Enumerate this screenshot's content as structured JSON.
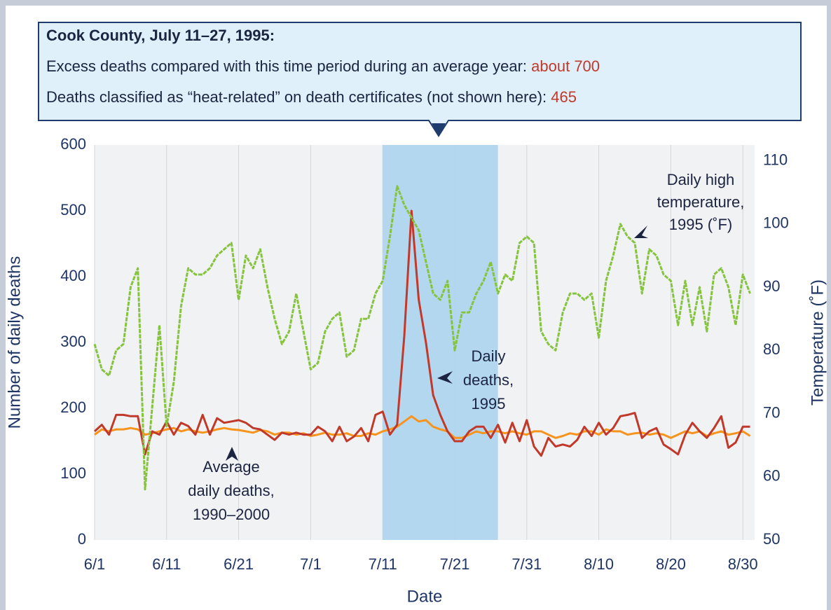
{
  "chart_data": {
    "type": "line",
    "callout": {
      "title": "Cook County, July 11–27, 1995:",
      "lines": [
        {
          "text": "Excess deaths compared with this time period during an average year:",
          "highlight": "about 700"
        },
        {
          "text": "Deaths classified as “heat-related” on death certificates (not shown here):",
          "highlight": "465"
        }
      ]
    },
    "xlabel": "Date",
    "ylabel": "Number of daily deaths",
    "y2label": "Temperature (˚F)",
    "x": [
      "6/1",
      "6/2",
      "6/3",
      "6/4",
      "6/5",
      "6/6",
      "6/7",
      "6/8",
      "6/9",
      "6/10",
      "6/11",
      "6/12",
      "6/13",
      "6/14",
      "6/15",
      "6/16",
      "6/17",
      "6/18",
      "6/19",
      "6/20",
      "6/21",
      "6/22",
      "6/23",
      "6/24",
      "6/25",
      "6/26",
      "6/27",
      "6/28",
      "6/29",
      "6/30",
      "7/1",
      "7/2",
      "7/3",
      "7/4",
      "7/5",
      "7/6",
      "7/7",
      "7/8",
      "7/9",
      "7/10",
      "7/11",
      "7/12",
      "7/13",
      "7/14",
      "7/15",
      "7/16",
      "7/17",
      "7/18",
      "7/19",
      "7/20",
      "7/21",
      "7/22",
      "7/23",
      "7/24",
      "7/25",
      "7/26",
      "7/27",
      "7/28",
      "7/29",
      "7/30",
      "7/31",
      "8/1",
      "8/2",
      "8/3",
      "8/4",
      "8/5",
      "8/6",
      "8/7",
      "8/8",
      "8/9",
      "8/10",
      "8/11",
      "8/12",
      "8/13",
      "8/14",
      "8/15",
      "8/16",
      "8/17",
      "8/18",
      "8/19",
      "8/20",
      "8/21",
      "8/22",
      "8/23",
      "8/24",
      "8/25",
      "8/26",
      "8/27",
      "8/28",
      "8/29",
      "8/30",
      "8/31"
    ],
    "xticks": [
      "6/1",
      "6/11",
      "6/21",
      "7/1",
      "7/11",
      "7/21",
      "7/31",
      "8/10",
      "8/20",
      "8/30"
    ],
    "highlight_range": [
      "7/11",
      "7/27"
    ],
    "ylim": [
      0,
      600
    ],
    "yticks": [
      0,
      100,
      200,
      300,
      400,
      500,
      600
    ],
    "y2lim": [
      50,
      112.5
    ],
    "y2ticks": [
      50,
      60,
      70,
      80,
      90,
      100,
      110
    ],
    "grid": true,
    "series": [
      {
        "name": "Daily high temperature, 1995 (˚F)",
        "axis": "y2",
        "color": "#86c440",
        "values": [
          81,
          77,
          76,
          80,
          81,
          90,
          93,
          58,
          71,
          84,
          68,
          75,
          87,
          93,
          92,
          92,
          93,
          95,
          96,
          97,
          88,
          95,
          93,
          96,
          90,
          85,
          81,
          83,
          89,
          83,
          77,
          78,
          83,
          85,
          86,
          79,
          80,
          85,
          85,
          89,
          91,
          98,
          106,
          103,
          101,
          99,
          94,
          89,
          88,
          91,
          80,
          86,
          86,
          89,
          91,
          94,
          89,
          92,
          91,
          97,
          98,
          97,
          83,
          81,
          80,
          86,
          89,
          89,
          88,
          89,
          82,
          91,
          95,
          100,
          98,
          97,
          89,
          96,
          95,
          92,
          91,
          84,
          91,
          84,
          90,
          83,
          92,
          93,
          90,
          84,
          92,
          89
        ]
      },
      {
        "name": "Daily deaths, 1995",
        "color": "#c0392b",
        "values": [
          165,
          175,
          160,
          190,
          190,
          188,
          188,
          130,
          165,
          160,
          180,
          160,
          178,
          173,
          160,
          190,
          160,
          185,
          178,
          180,
          182,
          178,
          170,
          168,
          160,
          152,
          163,
          160,
          163,
          160,
          160,
          172,
          165,
          150,
          172,
          150,
          157,
          170,
          150,
          190,
          195,
          160,
          175,
          310,
          500,
          365,
          300,
          220,
          190,
          165,
          150,
          150,
          165,
          172,
          172,
          155,
          175,
          148,
          178,
          150,
          182,
          142,
          128,
          155,
          142,
          145,
          142,
          152,
          172,
          158,
          178,
          160,
          170,
          188,
          190,
          193,
          155,
          165,
          170,
          145,
          138,
          130,
          160,
          178,
          165,
          155,
          170,
          188,
          140,
          148,
          172,
          172
        ]
      },
      {
        "name": "Average daily deaths, 1990–2000",
        "color": "#f7941d",
        "values": [
          160,
          168,
          165,
          168,
          168,
          170,
          168,
          160,
          162,
          165,
          168,
          170,
          165,
          168,
          165,
          163,
          165,
          168,
          170,
          168,
          167,
          165,
          163,
          167,
          165,
          160,
          163,
          163,
          160,
          162,
          158,
          160,
          163,
          160,
          160,
          162,
          158,
          158,
          162,
          160,
          165,
          168,
          172,
          180,
          188,
          180,
          182,
          172,
          168,
          165,
          155,
          155,
          160,
          165,
          162,
          165,
          165,
          162,
          165,
          162,
          160,
          165,
          165,
          160,
          155,
          158,
          162,
          160,
          165,
          165,
          160,
          168,
          165,
          165,
          160,
          162,
          163,
          160,
          162,
          160,
          155,
          160,
          165,
          162,
          165,
          158,
          162,
          165,
          160,
          162,
          165,
          158
        ]
      }
    ],
    "annotations": [
      {
        "series": 0,
        "lines": [
          "Daily high",
          "temperature,",
          "1995 (˚F)"
        ]
      },
      {
        "series": 1,
        "lines": [
          "Daily",
          "deaths,",
          "1995"
        ]
      },
      {
        "series": 2,
        "lines": [
          "Average",
          "daily deaths,",
          "1990–2000"
        ]
      }
    ]
  }
}
